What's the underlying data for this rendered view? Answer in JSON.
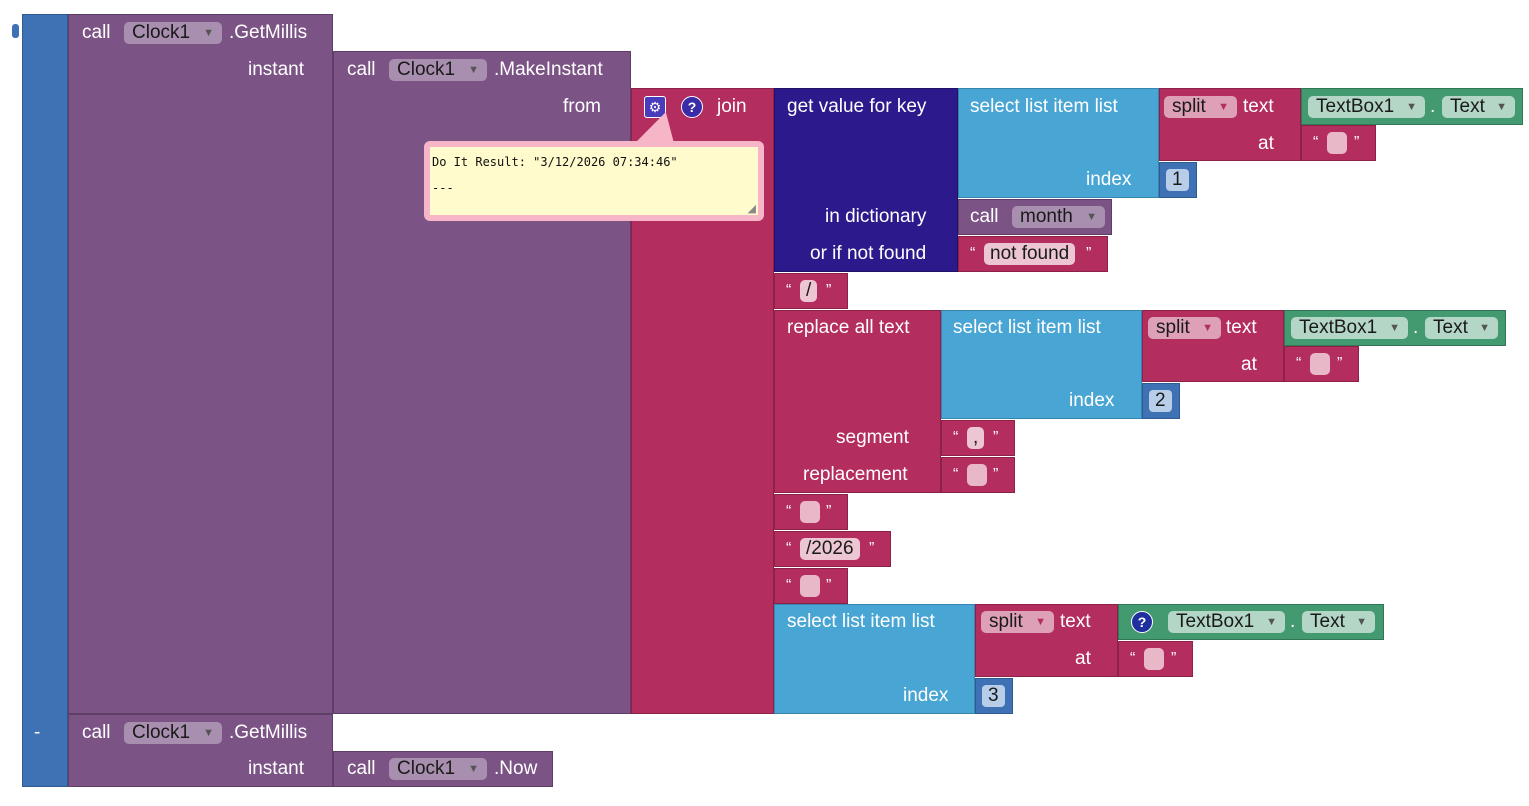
{
  "blocks": {
    "get_millis_1": {
      "call": "call",
      "component": "Clock1",
      "method": ".GetMillis",
      "instant": "instant"
    },
    "make_instant": {
      "call": "call",
      "component": "Clock1",
      "method": ".MakeInstant",
      "from": "from"
    },
    "join": {
      "label": "join"
    },
    "dict_lookup": {
      "label": "get value for key",
      "in_dictionary": "in dictionary",
      "or_if_not_found": "or if not found"
    },
    "select_1": {
      "label": "select list item  list",
      "index": "index",
      "index_value": "1"
    },
    "split_1": {
      "op": "split",
      "text": "text",
      "at": "at",
      "component": "TextBox1",
      "prop": "Text"
    },
    "call_month": {
      "call": "call",
      "proc": "month"
    },
    "not_found": {
      "value": "not found"
    },
    "slash": {
      "value": "/"
    },
    "replace_all": {
      "label": "replace all text",
      "segment": "segment",
      "replacement": "replacement",
      "segment_value": ",",
      "replacement_value": ""
    },
    "select_2": {
      "label": "select list item  list",
      "index": "index",
      "index_value": "2"
    },
    "split_2": {
      "op": "split",
      "text": "text",
      "at": "at",
      "component": "TextBox1",
      "prop": "Text"
    },
    "year": {
      "value": "/2026"
    },
    "select_3": {
      "label": "select list item  list",
      "index": "index",
      "index_value": "3"
    },
    "split_3": {
      "op": "split",
      "text": "text",
      "at": "at",
      "component": "TextBox1",
      "prop": "Text"
    },
    "get_millis_2": {
      "minus": "-",
      "call": "call",
      "component": "Clock1",
      "method": ".GetMillis",
      "instant": "instant"
    },
    "now": {
      "call": "call",
      "component": "Clock1",
      "method": ".Now"
    },
    "dot": "."
  },
  "do_it_result": {
    "line1": "Do It Result: \"3/12/2026 07:34:46\"",
    "line2": "---"
  },
  "colors": {
    "math": "#3f71b5",
    "component": "#7b5385",
    "text": "#b32d5e",
    "dictionary": "#2c1a8c",
    "list": "#49a6d4",
    "textbox": "#439970"
  }
}
